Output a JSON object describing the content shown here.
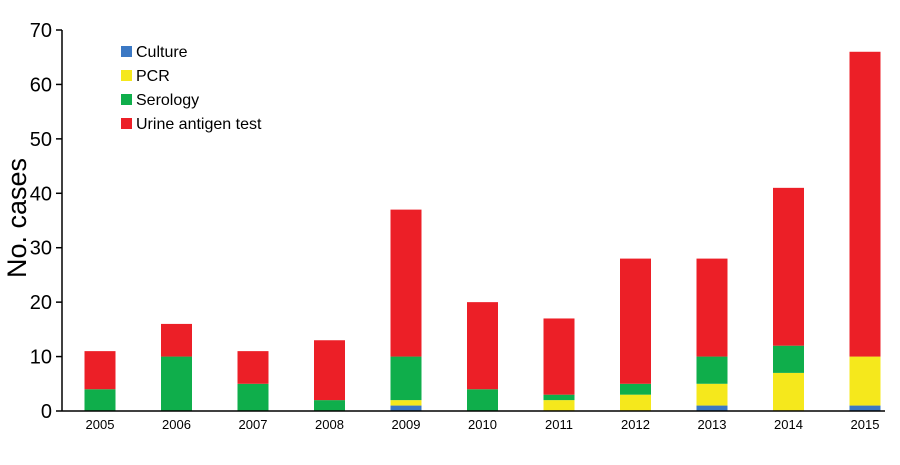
{
  "chart_data": {
    "type": "bar",
    "stacked": true,
    "title": "",
    "xlabel": "",
    "ylabel": "No. cases",
    "ylim": [
      0,
      70
    ],
    "yticks": [
      0,
      10,
      20,
      30,
      40,
      50,
      60,
      70
    ],
    "grid": false,
    "legend_position": "top-left",
    "categories": [
      "2005",
      "2006",
      "2007",
      "2008",
      "2009",
      "2010",
      "2011",
      "2012",
      "2013",
      "2014",
      "2015"
    ],
    "series": [
      {
        "name": "Culture",
        "color": "#3b78c4",
        "values": [
          0,
          0,
          0,
          0,
          1,
          0,
          0,
          0,
          1,
          0,
          1
        ]
      },
      {
        "name": "PCR",
        "color": "#f5e81c",
        "values": [
          0,
          0,
          0,
          0,
          1,
          0,
          2,
          3,
          4,
          7,
          9
        ]
      },
      {
        "name": "Serology",
        "color": "#0fae4b",
        "values": [
          4,
          10,
          5,
          2,
          8,
          4,
          1,
          2,
          5,
          5,
          0
        ]
      },
      {
        "name": "Urine antigen test",
        "color": "#ec1f27",
        "values": [
          7,
          6,
          6,
          11,
          27,
          16,
          14,
          23,
          18,
          29,
          56
        ]
      }
    ]
  }
}
